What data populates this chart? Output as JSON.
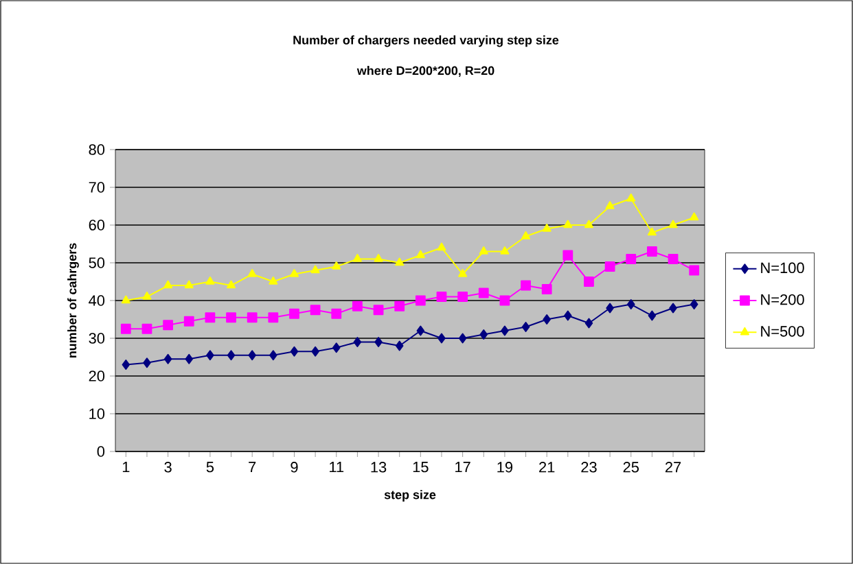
{
  "chart_data": {
    "type": "line",
    "title": "Number of chargers needed varying step size",
    "subtitle": "where D=200*200, R=20",
    "xlabel": "step size",
    "ylabel": "number of cahrgers",
    "categories": [
      "1",
      null,
      "3",
      null,
      "5",
      null,
      "7",
      null,
      "9",
      null,
      "11",
      null,
      "13",
      null,
      "15",
      null,
      "17",
      null,
      "19",
      null,
      "21",
      null,
      "23",
      null,
      "25",
      null,
      "27",
      null
    ],
    "ylim": [
      0,
      80
    ],
    "yticks": [
      0,
      10,
      20,
      30,
      40,
      50,
      60,
      70,
      80
    ],
    "grid": "y",
    "legend": "right",
    "series": [
      {
        "name": "N=100",
        "color": "#000080",
        "marker": "diamond",
        "values": [
          23,
          23.5,
          24.5,
          24.5,
          25.5,
          25.5,
          25.5,
          25.5,
          26.5,
          26.5,
          27.5,
          29,
          29,
          28,
          32,
          30,
          30,
          31,
          32,
          33,
          35,
          36,
          34,
          38,
          39,
          36,
          38,
          39
        ]
      },
      {
        "name": "N=200",
        "color": "#FF00FF",
        "marker": "square",
        "values": [
          32.5,
          32.5,
          33.5,
          34.5,
          35.5,
          35.5,
          35.5,
          35.5,
          36.5,
          37.5,
          36.5,
          38.5,
          37.5,
          38.5,
          40,
          41,
          41,
          42,
          40,
          44,
          43,
          52,
          45,
          49,
          51,
          53,
          51,
          48
        ]
      },
      {
        "name": "N=500",
        "color": "#FFFF00",
        "marker": "triangle",
        "values": [
          40,
          41,
          44,
          44,
          45,
          44,
          47,
          45,
          47,
          48,
          49,
          51,
          51,
          50,
          52,
          54,
          47,
          53,
          53,
          57,
          59,
          60,
          60,
          65,
          67,
          58,
          60,
          62
        ]
      }
    ]
  }
}
